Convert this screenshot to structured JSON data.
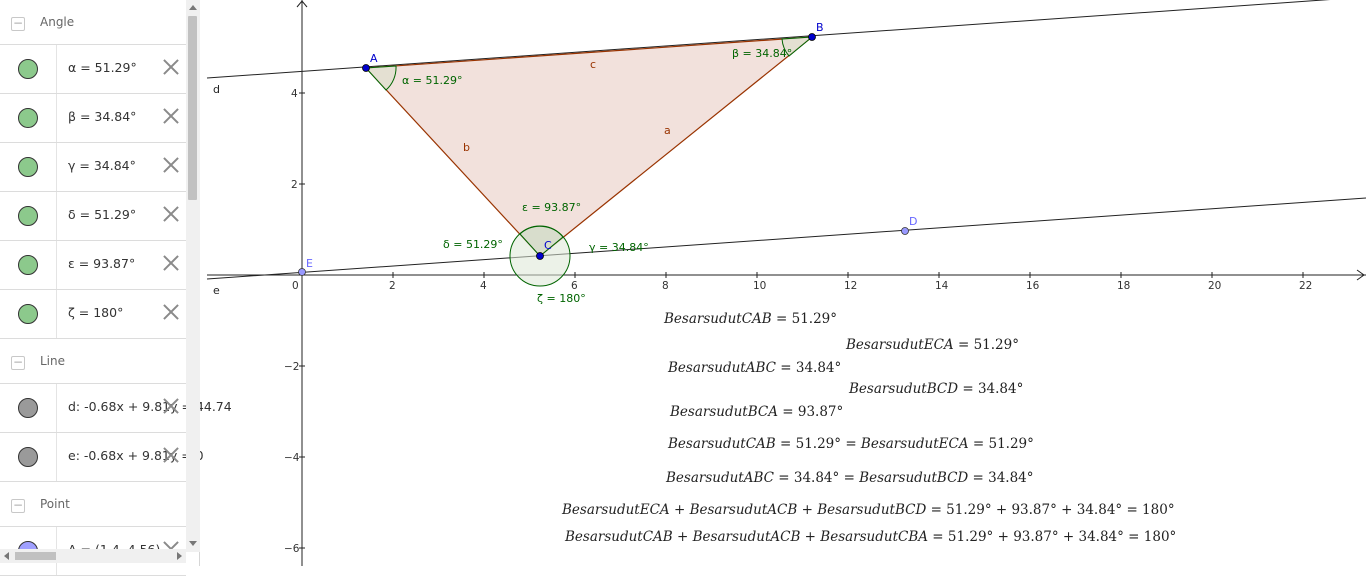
{
  "algebra": {
    "categories": {
      "angle": "Angle",
      "line": "Line",
      "point": "Point"
    },
    "angles": [
      {
        "label": "α = 51.29°",
        "color": "#8cc98c"
      },
      {
        "label": "β = 34.84°",
        "color": "#8cc98c"
      },
      {
        "label": "γ = 34.84°",
        "color": "#8cc98c"
      },
      {
        "label": "δ = 51.29°",
        "color": "#8cc98c"
      },
      {
        "label": "ε = 93.87°",
        "color": "#8cc98c"
      },
      {
        "label": "ζ = 180°",
        "color": "#8cc98c"
      }
    ],
    "lines": [
      {
        "label": "d: -0.68x + 9.81y = 44.74",
        "color": "#9a9a9a"
      },
      {
        "label": "e: -0.68x + 9.81y = 0",
        "color": "#9a9a9a"
      }
    ],
    "points": [
      {
        "label": "A = (1.4, 4.56)",
        "color": "#a0a0ff"
      }
    ]
  },
  "graphics": {
    "x_ticks": [
      "0",
      "2",
      "4",
      "6",
      "8",
      "10",
      "12",
      "14",
      "16",
      "18",
      "20",
      "22"
    ],
    "y_ticks": [
      "4",
      "2",
      "−2",
      "−4",
      "−6"
    ],
    "points": {
      "A": "A",
      "B": "B",
      "C": "C",
      "D": "D",
      "E": "E"
    },
    "line_labels": {
      "d": "d",
      "e": "e"
    },
    "segment_labels": {
      "a": "a",
      "b": "b",
      "c": "c"
    },
    "angle_labels": {
      "alpha": "α = 51.29°",
      "beta": "β = 34.84°",
      "gamma": "γ = 34.84°",
      "delta": "δ = 51.29°",
      "epsilon": "ε = 93.87°",
      "zeta": "ζ = 180°"
    },
    "colors": {
      "triangle_fill": "#f2e1dc",
      "triangle_edge": "#993300",
      "angle_green": "#006400",
      "point_blue": "#0000cc",
      "point_violet": "#6666ff",
      "angle_fill": "#e4eadc"
    },
    "texts": [
      {
        "id": "t1",
        "lhs": "BesarsudutCAB",
        "rhs": " = 51.29°"
      },
      {
        "id": "t2",
        "lhs": "BesarsudutECA",
        "rhs": " = 51.29°"
      },
      {
        "id": "t3",
        "lhs": "BesarsudutABC",
        "rhs": " = 34.84°"
      },
      {
        "id": "t4",
        "lhs": "BesarsudutBCD",
        "rhs": " = 34.84°"
      },
      {
        "id": "t5",
        "lhs": "BesarsudutBCA",
        "rhs": " = 93.87°"
      },
      {
        "id": "t6",
        "lhs": "BesarsudutCAB",
        "rhs": " = 51.29° = ",
        "lhs2": "BesarsudutECA",
        "rhs2": " = 51.29°"
      },
      {
        "id": "t7",
        "lhs": "BesarsudutABC",
        "rhs": " = 34.84° = ",
        "lhs2": "BesarsudutBCD",
        "rhs2": " = 34.84°"
      },
      {
        "id": "t8",
        "lhs": "BesarsudutECA",
        "rhs": " + ",
        "lhs2": "BesarsudutACB",
        "rhs2": " + ",
        "lhs3": "BesarsudutBCD",
        "rhs3": " = 51.29° + 93.87° + 34.84° = 180°"
      },
      {
        "id": "t9",
        "lhs": "BesarsudutCAB",
        "rhs": " + ",
        "lhs2": "BesarsudutACB",
        "rhs2": " + ",
        "lhs3": "BesarsudutCBA",
        "rhs3": " = 51.29° + 93.87° + 34.84° = 180°"
      }
    ]
  }
}
